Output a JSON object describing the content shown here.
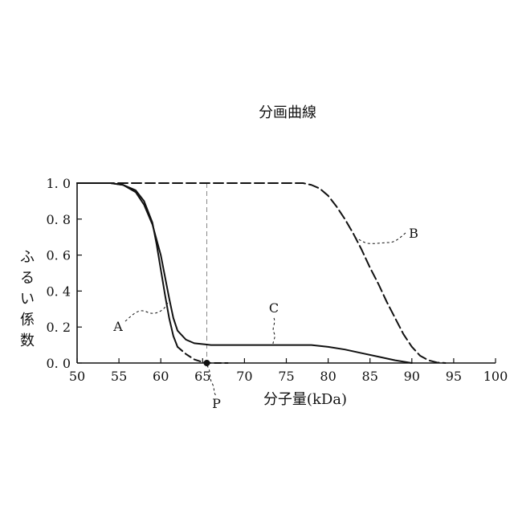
{
  "chart_data": {
    "type": "line",
    "title": "分画曲線",
    "xlabel": "分子量(kDa)",
    "ylabel": "ふるい係数",
    "xlim": [
      50,
      100
    ],
    "ylim": [
      0,
      1.0
    ],
    "x_ticks": [
      "50",
      "55",
      "60",
      "65",
      "70",
      "75",
      "80",
      "85",
      "90",
      "95",
      "100"
    ],
    "y_ticks": [
      "0.0",
      "0.2",
      "0.4",
      "0.6",
      "0.8",
      "1.0"
    ],
    "grid": false,
    "series": [
      {
        "name": "A",
        "line_style": "dashed-end",
        "x": [
          50,
          54,
          55.5,
          57,
          58,
          59,
          59.5,
          60,
          60.5,
          61,
          61.5,
          62,
          63,
          64,
          65,
          66,
          68
        ],
        "y": [
          1.0,
          1.0,
          0.99,
          0.96,
          0.9,
          0.78,
          0.66,
          0.52,
          0.38,
          0.25,
          0.15,
          0.09,
          0.05,
          0.02,
          0.005,
          0.0,
          0.0
        ]
      },
      {
        "name": "B",
        "line_style": "dashed",
        "x": [
          50,
          77,
          78,
          79,
          80,
          81,
          82,
          83,
          84,
          85,
          86,
          87,
          88,
          89,
          90,
          91,
          92,
          93,
          94
        ],
        "y": [
          1.0,
          1.0,
          0.99,
          0.97,
          0.93,
          0.87,
          0.8,
          0.72,
          0.63,
          0.53,
          0.44,
          0.34,
          0.25,
          0.16,
          0.09,
          0.04,
          0.015,
          0.003,
          0.0
        ]
      },
      {
        "name": "C",
        "line_style": "solid",
        "x": [
          50,
          54,
          55.5,
          57,
          58,
          59,
          60,
          60.5,
          61,
          61.5,
          62,
          63,
          64,
          66,
          68,
          70,
          75,
          78,
          80,
          82,
          84,
          86,
          88,
          90
        ],
        "y": [
          1.0,
          1.0,
          0.99,
          0.95,
          0.88,
          0.77,
          0.6,
          0.48,
          0.36,
          0.25,
          0.18,
          0.13,
          0.11,
          0.1,
          0.1,
          0.1,
          0.1,
          0.1,
          0.09,
          0.075,
          0.055,
          0.035,
          0.015,
          0.0
        ]
      }
    ],
    "point": {
      "label": "P",
      "x": 65.5,
      "y": 0.0
    },
    "reference_line_x": 65.5
  }
}
